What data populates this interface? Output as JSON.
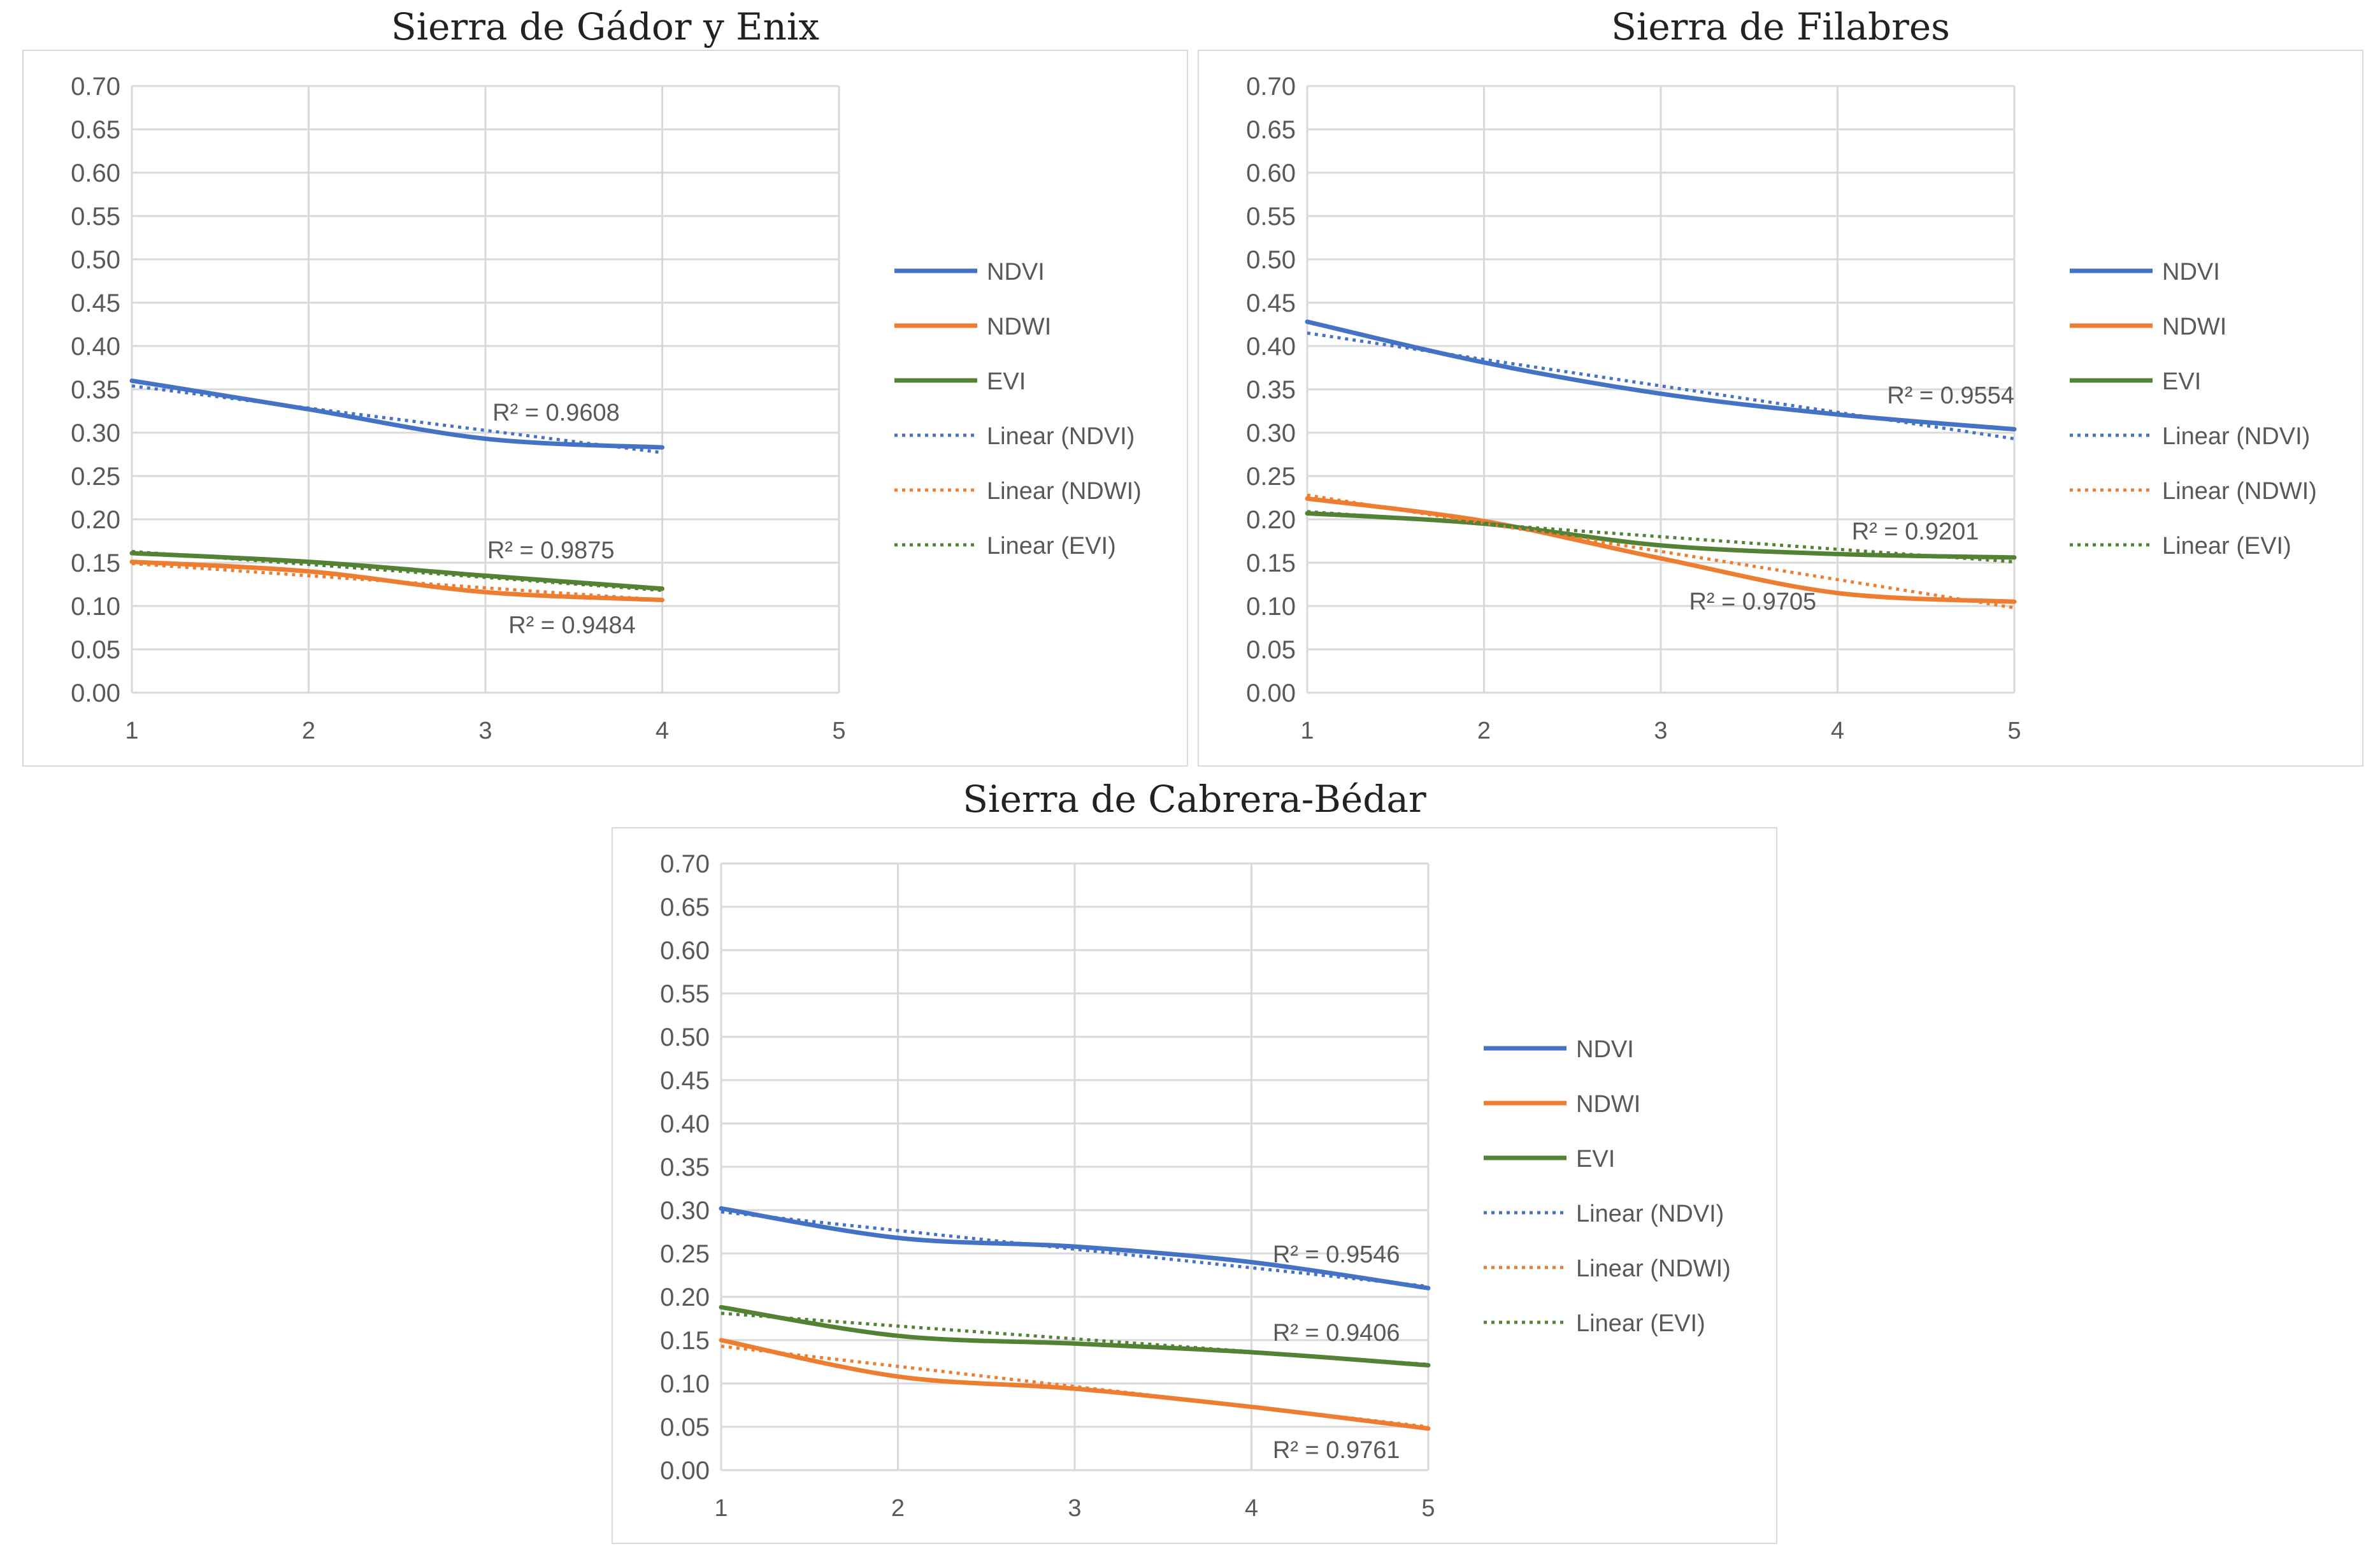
{
  "colors": {
    "ndvi": "#4472c4",
    "ndwi": "#ed7d31",
    "evi": "#548235",
    "grid": "#d9d9d9",
    "text": "#595959"
  },
  "legend_labels": [
    "NDVI",
    "NDWI",
    "EVI",
    "Linear (NDVI)",
    "Linear (NDWI)",
    "Linear (EVI)"
  ],
  "chart_data": [
    {
      "type": "line",
      "title": "Sierra de Gádor y Enix",
      "x": [
        1,
        2,
        3,
        4
      ],
      "xlim": [
        1,
        5
      ],
      "ylim": [
        0,
        0.7
      ],
      "x_ticks": [
        "1",
        "2",
        "3",
        "4",
        "5"
      ],
      "y_ticks": [
        "0.00",
        "0.05",
        "0.10",
        "0.15",
        "0.20",
        "0.25",
        "0.30",
        "0.35",
        "0.40",
        "0.45",
        "0.50",
        "0.55",
        "0.60",
        "0.65",
        "0.70"
      ],
      "series": [
        {
          "name": "NDVI",
          "values": [
            0.36,
            0.327,
            0.293,
            0.283
          ]
        },
        {
          "name": "NDWI",
          "values": [
            0.151,
            0.14,
            0.116,
            0.107
          ]
        },
        {
          "name": "EVI",
          "values": [
            0.161,
            0.151,
            0.135,
            0.12
          ]
        }
      ],
      "trendlines": [
        {
          "name": "Linear (NDVI)",
          "start": 0.354,
          "end": 0.277,
          "r2": "R² = 0.9608"
        },
        {
          "name": "Linear (NDWI)",
          "start": 0.149,
          "end": 0.107,
          "r2": "R² = 0.9484"
        },
        {
          "name": "Linear (EVI)",
          "start": 0.163,
          "end": 0.118,
          "r2": "R² = 0.9875"
        }
      ],
      "legend": "right"
    },
    {
      "type": "line",
      "title": "Sierra de Filabres",
      "x": [
        1,
        2,
        3,
        4,
        5
      ],
      "xlim": [
        1,
        5
      ],
      "ylim": [
        0,
        0.7
      ],
      "x_ticks": [
        "1",
        "2",
        "3",
        "4",
        "5"
      ],
      "y_ticks": [
        "0.00",
        "0.05",
        "0.10",
        "0.15",
        "0.20",
        "0.25",
        "0.30",
        "0.35",
        "0.40",
        "0.45",
        "0.50",
        "0.55",
        "0.60",
        "0.65",
        "0.70"
      ],
      "series": [
        {
          "name": "NDVI",
          "values": [
            0.428,
            0.381,
            0.345,
            0.321,
            0.304
          ]
        },
        {
          "name": "NDWI",
          "values": [
            0.224,
            0.198,
            0.155,
            0.115,
            0.105
          ]
        },
        {
          "name": "EVI",
          "values": [
            0.207,
            0.195,
            0.17,
            0.16,
            0.156
          ]
        }
      ],
      "trendlines": [
        {
          "name": "Linear (NDVI)",
          "start": 0.415,
          "end": 0.293,
          "r2": "R² = 0.9554"
        },
        {
          "name": "Linear (NDWI)",
          "start": 0.228,
          "end": 0.098,
          "r2": "R² = 0.9705"
        },
        {
          "name": "Linear (EVI)",
          "start": 0.209,
          "end": 0.151,
          "r2": "R² = 0.9201"
        }
      ],
      "legend": "right"
    },
    {
      "type": "line",
      "title": "Sierra de Cabrera-Bédar",
      "x": [
        1,
        2,
        3,
        4,
        5
      ],
      "xlim": [
        1,
        5
      ],
      "ylim": [
        0,
        0.7
      ],
      "x_ticks": [
        "1",
        "2",
        "3",
        "4",
        "5"
      ],
      "y_ticks": [
        "0.00",
        "0.05",
        "0.10",
        "0.15",
        "0.20",
        "0.25",
        "0.30",
        "0.35",
        "0.40",
        "0.45",
        "0.50",
        "0.55",
        "0.60",
        "0.65",
        "0.70"
      ],
      "series": [
        {
          "name": "NDVI",
          "values": [
            0.302,
            0.268,
            0.258,
            0.24,
            0.21
          ]
        },
        {
          "name": "NDWI",
          "values": [
            0.15,
            0.108,
            0.094,
            0.073,
            0.048
          ]
        },
        {
          "name": "EVI",
          "values": [
            0.188,
            0.155,
            0.146,
            0.136,
            0.121
          ]
        }
      ],
      "trendlines": [
        {
          "name": "Linear (NDVI)",
          "start": 0.298,
          "end": 0.212,
          "r2": "R² = 0.9546"
        },
        {
          "name": "Linear (NDWI)",
          "start": 0.143,
          "end": 0.05,
          "r2": "R² = 0.9761"
        },
        {
          "name": "Linear (EVI)",
          "start": 0.181,
          "end": 0.122,
          "r2": "R² = 0.9406"
        }
      ],
      "legend": "right"
    }
  ]
}
